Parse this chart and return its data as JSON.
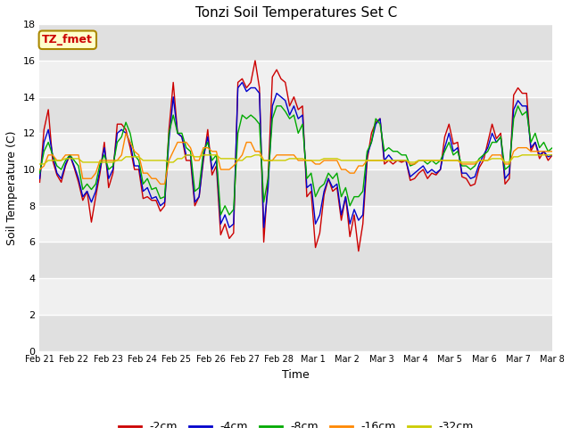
{
  "title": "Tonzi Soil Temperatures Set C",
  "xlabel": "Time",
  "ylabel": "Soil Temperature (C)",
  "annotation_text": "TZ_fmet",
  "annotation_bg": "#ffffcc",
  "annotation_border": "#aa8800",
  "ylim": [
    0,
    18
  ],
  "yticks": [
    0,
    2,
    4,
    6,
    8,
    10,
    12,
    14,
    16,
    18
  ],
  "x_labels": [
    "Feb 21",
    "Feb 22",
    "Feb 23",
    "Feb 24",
    "Feb 25",
    "Feb 26",
    "Feb 27",
    "Feb 28",
    "Mar 1",
    "Mar 2",
    "Mar 3",
    "Mar 4",
    "Mar 5",
    "Mar 6",
    "Mar 7",
    "Mar 8"
  ],
  "series_colors": [
    "#cc0000",
    "#0000cc",
    "#00aa00",
    "#ff8800",
    "#cccc00"
  ],
  "series_labels": [
    "-2cm",
    "-4cm",
    "-8cm",
    "-16cm",
    "-32cm"
  ],
  "fig_bg": "#ffffff",
  "plot_bg_light": "#f0f0f0",
  "plot_bg_dark": "#e0e0e0",
  "grid_color": "#ffffff",
  "points_per_day": 4,
  "series": {
    "neg2cm": [
      9.3,
      12.2,
      13.3,
      10.5,
      9.7,
      9.3,
      10.2,
      10.8,
      10.1,
      9.3,
      8.3,
      8.8,
      7.1,
      8.5,
      9.8,
      11.5,
      9.0,
      9.8,
      12.5,
      12.5,
      12.2,
      11.2,
      10.0,
      10.0,
      8.4,
      8.5,
      8.3,
      8.3,
      7.7,
      8.0,
      12.2,
      14.8,
      12.0,
      11.8,
      10.5,
      10.5,
      8.0,
      8.5,
      10.5,
      12.2,
      9.7,
      10.2,
      6.4,
      7.0,
      6.2,
      6.5,
      14.8,
      15.0,
      14.5,
      14.8,
      16.0,
      14.5,
      6.0,
      9.5,
      15.1,
      15.5,
      15.0,
      14.8,
      13.5,
      14.0,
      13.3,
      13.5,
      8.5,
      8.8,
      5.7,
      6.5,
      8.6,
      9.5,
      8.8,
      9.0,
      7.2,
      8.5,
      6.3,
      7.5,
      5.5,
      7.0,
      10.5,
      12.0,
      12.6,
      12.8,
      10.3,
      10.5,
      10.3,
      10.5,
      10.4,
      10.5,
      9.4,
      9.5,
      9.8,
      10.0,
      9.5,
      9.8,
      9.7,
      10.0,
      11.8,
      12.5,
      11.4,
      11.5,
      9.6,
      9.5,
      9.1,
      9.2,
      10.1,
      10.5,
      11.5,
      12.5,
      11.7,
      12.0,
      9.2,
      9.5,
      14.1,
      14.5,
      14.2,
      14.2,
      11.0,
      11.5,
      10.6,
      11.0,
      10.5,
      10.8
    ],
    "neg4cm": [
      9.5,
      11.5,
      12.2,
      10.8,
      9.8,
      9.5,
      10.3,
      10.8,
      10.2,
      9.5,
      8.5,
      8.8,
      8.2,
      8.8,
      10.0,
      11.2,
      9.5,
      10.0,
      12.0,
      12.2,
      12.0,
      11.5,
      10.2,
      10.2,
      8.8,
      9.0,
      8.4,
      8.5,
      8.0,
      8.2,
      11.6,
      14.0,
      12.0,
      11.8,
      10.8,
      10.8,
      8.2,
      8.5,
      10.7,
      11.8,
      10.0,
      10.5,
      7.0,
      7.5,
      6.8,
      7.0,
      14.5,
      14.8,
      14.3,
      14.5,
      14.5,
      14.2,
      6.8,
      9.0,
      13.5,
      14.2,
      14.0,
      13.8,
      13.0,
      13.5,
      12.8,
      13.0,
      9.0,
      9.2,
      7.0,
      7.5,
      8.8,
      9.5,
      9.0,
      9.2,
      7.5,
      8.5,
      7.0,
      7.8,
      7.2,
      7.5,
      10.8,
      11.5,
      12.5,
      12.8,
      10.5,
      10.8,
      10.5,
      10.5,
      10.5,
      10.5,
      9.6,
      9.8,
      10.0,
      10.2,
      9.8,
      10.0,
      9.8,
      10.0,
      11.2,
      12.0,
      11.0,
      11.2,
      9.8,
      9.8,
      9.5,
      9.6,
      10.3,
      10.8,
      11.2,
      12.0,
      11.5,
      11.8,
      9.5,
      9.8,
      13.3,
      13.8,
      13.5,
      13.5,
      11.2,
      11.5,
      10.8,
      11.0,
      10.7,
      10.8
    ],
    "neg8cm": [
      9.8,
      11.0,
      11.5,
      10.8,
      10.2,
      10.0,
      10.5,
      10.8,
      10.5,
      10.2,
      8.9,
      9.2,
      8.9,
      9.2,
      10.3,
      10.8,
      10.0,
      10.2,
      11.5,
      11.8,
      12.6,
      12.0,
      10.8,
      10.5,
      9.2,
      9.5,
      8.9,
      9.0,
      8.4,
      8.5,
      12.0,
      13.0,
      12.0,
      12.0,
      11.2,
      11.0,
      8.8,
      9.0,
      11.0,
      11.5,
      10.5,
      10.8,
      7.5,
      8.0,
      7.5,
      7.8,
      12.0,
      13.0,
      12.8,
      13.0,
      12.8,
      12.5,
      8.2,
      9.5,
      12.8,
      13.5,
      13.5,
      13.2,
      12.8,
      13.0,
      12.0,
      12.5,
      9.5,
      9.8,
      8.5,
      9.0,
      9.2,
      9.8,
      9.5,
      9.8,
      8.5,
      9.0,
      8.0,
      8.5,
      8.5,
      8.8,
      11.0,
      11.5,
      12.8,
      12.5,
      11.0,
      11.2,
      11.0,
      11.0,
      10.8,
      10.8,
      10.2,
      10.3,
      10.5,
      10.5,
      10.3,
      10.5,
      10.3,
      10.5,
      11.0,
      11.5,
      10.8,
      11.0,
      10.2,
      10.2,
      10.0,
      10.2,
      10.6,
      10.8,
      11.0,
      11.5,
      11.5,
      11.8,
      10.0,
      10.2,
      12.8,
      13.5,
      13.0,
      13.2,
      11.5,
      12.0,
      11.2,
      11.5,
      11.0,
      11.2
    ],
    "neg16cm": [
      10.0,
      10.2,
      10.8,
      10.8,
      10.5,
      10.5,
      10.8,
      10.8,
      10.8,
      10.8,
      9.5,
      9.5,
      9.5,
      9.8,
      10.5,
      10.5,
      10.5,
      10.5,
      10.5,
      10.8,
      12.0,
      11.5,
      11.0,
      10.8,
      9.8,
      9.8,
      9.5,
      9.5,
      9.2,
      9.2,
      10.5,
      11.0,
      11.5,
      11.5,
      11.5,
      11.2,
      10.5,
      10.5,
      11.2,
      11.2,
      11.0,
      11.0,
      10.0,
      10.0,
      10.0,
      10.2,
      10.5,
      10.8,
      11.5,
      11.5,
      11.0,
      11.0,
      10.5,
      10.5,
      10.5,
      10.8,
      10.8,
      10.8,
      10.8,
      10.8,
      10.5,
      10.5,
      10.5,
      10.5,
      10.3,
      10.3,
      10.5,
      10.5,
      10.5,
      10.5,
      10.0,
      10.0,
      9.8,
      9.8,
      10.2,
      10.2,
      10.5,
      10.5,
      10.5,
      10.5,
      10.5,
      10.5,
      10.5,
      10.5,
      10.5,
      10.5,
      10.3,
      10.3,
      10.5,
      10.5,
      10.5,
      10.5,
      10.5,
      10.5,
      10.5,
      10.5,
      10.5,
      10.5,
      10.3,
      10.3,
      10.3,
      10.3,
      10.5,
      10.5,
      10.5,
      10.8,
      10.8,
      10.8,
      10.3,
      10.3,
      11.0,
      11.2,
      11.2,
      11.2,
      11.0,
      11.0,
      11.0,
      11.0,
      11.0,
      11.0
    ],
    "neg32cm": [
      10.3,
      10.3,
      10.5,
      10.5,
      10.5,
      10.5,
      10.6,
      10.6,
      10.6,
      10.6,
      10.4,
      10.4,
      10.4,
      10.4,
      10.4,
      10.4,
      10.4,
      10.4,
      10.5,
      10.5,
      10.7,
      10.7,
      10.7,
      10.7,
      10.5,
      10.5,
      10.5,
      10.5,
      10.5,
      10.5,
      10.4,
      10.4,
      10.6,
      10.6,
      10.8,
      10.8,
      10.7,
      10.7,
      10.8,
      10.8,
      10.8,
      10.8,
      10.6,
      10.6,
      10.6,
      10.6,
      10.5,
      10.5,
      10.7,
      10.7,
      10.8,
      10.8,
      10.5,
      10.5,
      10.5,
      10.5,
      10.5,
      10.5,
      10.6,
      10.6,
      10.6,
      10.6,
      10.5,
      10.5,
      10.5,
      10.5,
      10.6,
      10.6,
      10.6,
      10.6,
      10.5,
      10.5,
      10.5,
      10.5,
      10.5,
      10.5,
      10.5,
      10.5,
      10.5,
      10.5,
      10.5,
      10.5,
      10.5,
      10.5,
      10.5,
      10.5,
      10.4,
      10.4,
      10.5,
      10.5,
      10.5,
      10.5,
      10.5,
      10.5,
      10.5,
      10.5,
      10.5,
      10.5,
      10.4,
      10.4,
      10.4,
      10.4,
      10.5,
      10.5,
      10.5,
      10.6,
      10.6,
      10.6,
      10.4,
      10.4,
      10.7,
      10.7,
      10.8,
      10.8,
      10.8,
      10.8,
      10.8,
      10.8,
      10.8,
      10.8
    ]
  }
}
